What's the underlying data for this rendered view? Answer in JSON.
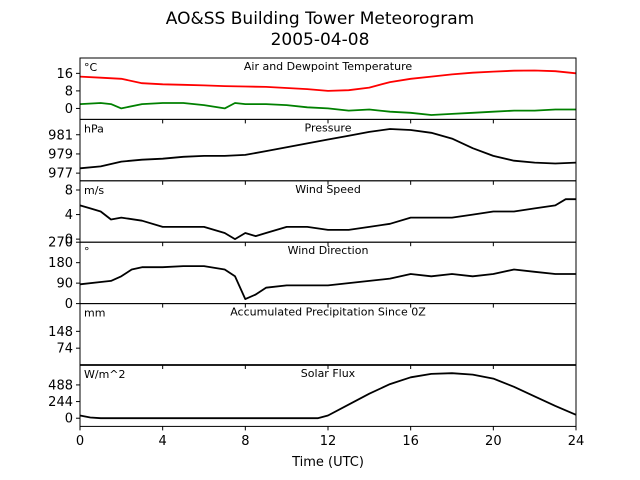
{
  "chart_data": {
    "type": "line",
    "title": [
      "AO&SS Building Tower Meteorogram",
      "2005-04-08"
    ],
    "xlabel": "Time (UTC)",
    "xlim": [
      0,
      24
    ],
    "xticks": [
      0,
      4,
      8,
      12,
      16,
      20,
      24
    ],
    "xtick_labels": [
      "0",
      "4",
      "8",
      "12",
      "16",
      "20",
      "24"
    ],
    "panels": [
      {
        "id": "temperature",
        "title": "Air and Dewpoint Temperature",
        "unit": "°C",
        "ylim": [
          -5,
          23
        ],
        "yticks": [
          0,
          8,
          16
        ],
        "ytick_labels": [
          "0",
          "8",
          "16"
        ],
        "series": [
          {
            "color": "#ff0000",
            "x": [
              0,
              1,
              2,
              3,
              4,
              5,
              6,
              7,
              8,
              9,
              10,
              11,
              12,
              13,
              14,
              15,
              16,
              17,
              18,
              19,
              20,
              21,
              22,
              23,
              24
            ],
            "y": [
              14.5,
              14,
              13.5,
              11.5,
              11,
              10.8,
              10.5,
              10.2,
              10,
              9.8,
              9.3,
              8.8,
              8,
              8.3,
              9.5,
              12,
              13.5,
              14.5,
              15.5,
              16.3,
              16.8,
              17.2,
              17.3,
              17,
              16
            ]
          },
          {
            "color": "#008000",
            "x": [
              0,
              1,
              1.5,
              2,
              3,
              4,
              5,
              6,
              7,
              7.5,
              8,
              9,
              10,
              11,
              12,
              13,
              14,
              15,
              16,
              17,
              18,
              19,
              20,
              21,
              22,
              23,
              24
            ],
            "y": [
              2,
              2.5,
              2,
              0,
              2,
              2.5,
              2.5,
              1.5,
              0,
              2.5,
              2,
              2,
              1.5,
              0.5,
              0,
              -1,
              -0.5,
              -1.5,
              -2,
              -3,
              -2.5,
              -2,
              -1.5,
              -1,
              -1,
              -0.5,
              -0.5
            ]
          }
        ]
      },
      {
        "id": "pressure",
        "title": "Pressure",
        "unit": "hPa",
        "ylim": [
          976.2,
          982.6
        ],
        "yticks": [
          977,
          979,
          981
        ],
        "ytick_labels": [
          "977",
          "979",
          "981"
        ],
        "series": [
          {
            "color": "#000000",
            "x": [
              0,
              1,
              2,
              3,
              4,
              5,
              6,
              7,
              8,
              9,
              10,
              11,
              12,
              13,
              14,
              15,
              16,
              17,
              18,
              19,
              20,
              21,
              22,
              23,
              24
            ],
            "y": [
              977.5,
              977.7,
              978.2,
              978.4,
              978.5,
              978.7,
              978.8,
              978.8,
              978.9,
              979.3,
              979.7,
              980.1,
              980.5,
              980.9,
              981.3,
              981.6,
              981.5,
              981.2,
              980.6,
              979.6,
              978.8,
              978.3,
              978.1,
              978.0,
              978.1
            ]
          }
        ]
      },
      {
        "id": "wind-speed",
        "title": "Wind Speed",
        "unit": "m/s",
        "ylim": [
          -0.5,
          9.5
        ],
        "yticks": [
          0,
          4,
          8
        ],
        "ytick_labels": [
          "0",
          "4",
          "8"
        ],
        "series": [
          {
            "color": "#000000",
            "x": [
              0,
              0.5,
              1,
              1.5,
              2,
              3,
              4,
              5,
              6,
              7,
              7.5,
              8,
              8.5,
              9,
              10,
              11,
              12,
              13,
              14,
              15,
              16,
              17,
              18,
              19,
              20,
              21,
              22,
              23,
              23.5,
              24
            ],
            "y": [
              5.5,
              5,
              4.5,
              3.2,
              3.5,
              3,
              2,
              2,
              2,
              1,
              0,
              1,
              0.5,
              1,
              2,
              2,
              1.5,
              1.5,
              2,
              2.5,
              3.5,
              3.5,
              3.5,
              4,
              4.5,
              4.5,
              5,
              5.5,
              6.5,
              6.5
            ]
          }
        ]
      },
      {
        "id": "wind-direction",
        "title": "Wind Direction",
        "unit": "°",
        "ylim": [
          0,
          270
        ],
        "yticks": [
          0,
          90,
          180,
          270
        ],
        "ytick_labels": [
          "0",
          "90",
          "180",
          "270"
        ],
        "series": [
          {
            "color": "#000000",
            "x": [
              0,
              1,
              1.5,
              2,
              2.5,
              3,
              4,
              5,
              6,
              7,
              7.5,
              8,
              8.5,
              9,
              10,
              11,
              12,
              13,
              14,
              15,
              16,
              17,
              18,
              19,
              20,
              21,
              22,
              23,
              24
            ],
            "y": [
              85,
              95,
              100,
              120,
              150,
              160,
              160,
              165,
              165,
              150,
              120,
              20,
              40,
              70,
              80,
              80,
              80,
              90,
              100,
              110,
              130,
              120,
              130,
              120,
              130,
              150,
              140,
              130,
              130
            ]
          }
        ]
      },
      {
        "id": "precipitation",
        "title": "Accumulated Precipitation Since 0Z",
        "unit": "mm",
        "ylim": [
          0,
          270
        ],
        "yticks": [
          74,
          148
        ],
        "ytick_labels": [
          "74",
          "148"
        ],
        "series": [
          {
            "color": "#000000",
            "x": [
              0,
              24
            ],
            "y": [
              0,
              0
            ]
          }
        ]
      },
      {
        "id": "solar-flux",
        "title": "Solar Flux",
        "unit": "W/m^2",
        "ylim": [
          -120,
          780
        ],
        "yticks": [
          0,
          244,
          488
        ],
        "ytick_labels": [
          "0",
          "244",
          "488"
        ],
        "series": [
          {
            "color": "#000000",
            "x": [
              0,
              0.5,
              1,
              2,
              4,
              6,
              8,
              10,
              11,
              11.5,
              12,
              13,
              14,
              15,
              16,
              17,
              18,
              19,
              20,
              21,
              22,
              23,
              24
            ],
            "y": [
              40,
              10,
              0,
              0,
              0,
              0,
              0,
              0,
              0,
              0,
              40,
              200,
              360,
              500,
              600,
              650,
              660,
              640,
              580,
              460,
              320,
              180,
              50
            ]
          }
        ]
      }
    ]
  }
}
